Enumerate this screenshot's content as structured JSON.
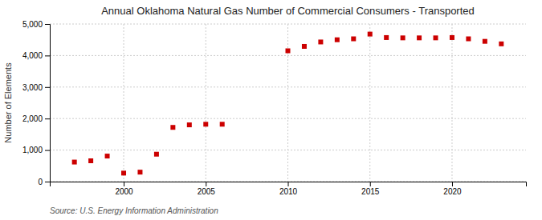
{
  "chart_data": {
    "type": "scatter",
    "title": "Annual Oklahoma Natural Gas Number of Commercial Consumers - Transported",
    "ylabel": "Number of Elements",
    "source": "Source: U.S. Energy Information Administration",
    "x": [
      1997,
      1998,
      1999,
      2000,
      2001,
      2002,
      2003,
      2004,
      2005,
      2006,
      2010,
      2011,
      2012,
      2013,
      2014,
      2015,
      2016,
      2017,
      2018,
      2019,
      2020,
      2021,
      2022,
      2023
    ],
    "values": [
      620,
      660,
      810,
      270,
      300,
      870,
      1720,
      1800,
      1820,
      1820,
      4150,
      4290,
      4430,
      4500,
      4530,
      4680,
      4570,
      4560,
      4560,
      4560,
      4570,
      4530,
      4450,
      4370
    ],
    "color": "#cc0000",
    "marker": "square",
    "xlim": [
      1995.5,
      2024.5
    ],
    "xticks": [
      2000,
      2005,
      2010,
      2015,
      2020
    ],
    "ylim": [
      0,
      5000
    ],
    "yticks": [
      0,
      {
        "value": 1000,
        "label": "1,000"
      },
      {
        "value": 2000,
        "label": "2,000"
      },
      {
        "value": 3000,
        "label": "3,000"
      },
      {
        "value": 4000,
        "label": "4,000"
      },
      {
        "value": 5000,
        "label": "5,000"
      }
    ],
    "grid": true
  }
}
